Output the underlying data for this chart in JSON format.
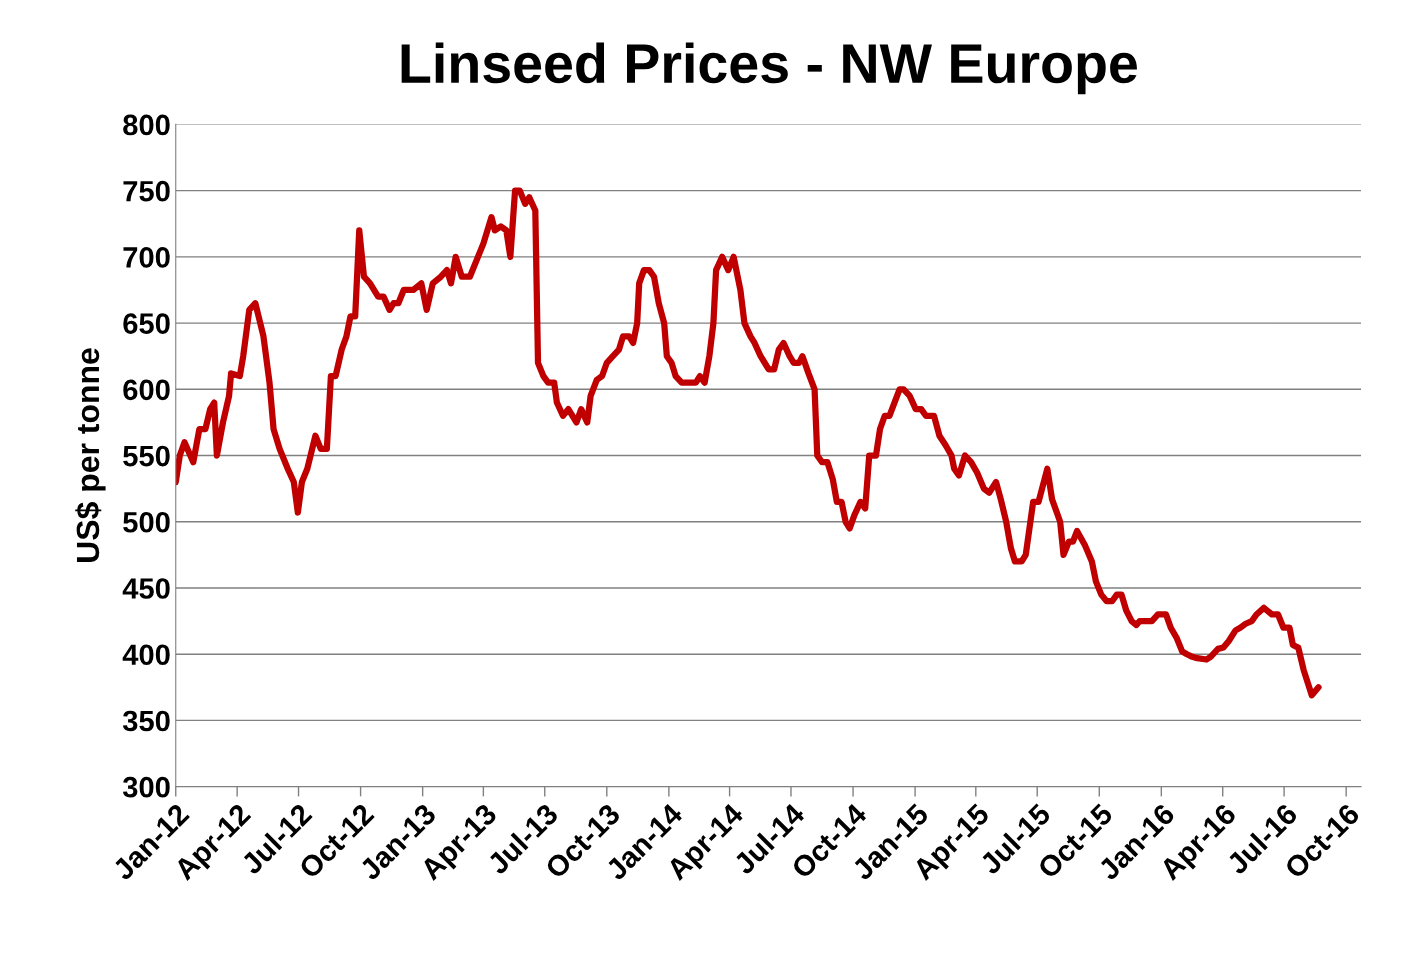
{
  "chart_data": {
    "type": "line",
    "title": "Linseed Prices - NW Europe",
    "ylabel": "US$ per tonne",
    "xlim": [
      "2012-01-01",
      "2016-10-23"
    ],
    "ylim": [
      300,
      800
    ],
    "yticks": [
      300,
      350,
      400,
      450,
      500,
      550,
      600,
      650,
      700,
      750,
      800
    ],
    "xticks": [
      {
        "value": "2012-01-01",
        "label": "Jan-12"
      },
      {
        "value": "2012-04-01",
        "label": "Apr-12"
      },
      {
        "value": "2012-07-01",
        "label": "Jul-12"
      },
      {
        "value": "2012-10-01",
        "label": "Oct-12"
      },
      {
        "value": "2013-01-01",
        "label": "Jan-13"
      },
      {
        "value": "2013-04-01",
        "label": "Apr-13"
      },
      {
        "value": "2013-07-01",
        "label": "Jul-13"
      },
      {
        "value": "2013-10-01",
        "label": "Oct-13"
      },
      {
        "value": "2014-01-01",
        "label": "Jan-14"
      },
      {
        "value": "2014-04-01",
        "label": "Apr-14"
      },
      {
        "value": "2014-07-01",
        "label": "Jul-14"
      },
      {
        "value": "2014-10-01",
        "label": "Oct-14"
      },
      {
        "value": "2015-01-01",
        "label": "Jan-15"
      },
      {
        "value": "2015-04-01",
        "label": "Apr-15"
      },
      {
        "value": "2015-07-01",
        "label": "Jul-15"
      },
      {
        "value": "2015-10-01",
        "label": "Oct-15"
      },
      {
        "value": "2016-01-01",
        "label": "Jan-16"
      },
      {
        "value": "2016-04-01",
        "label": "Apr-16"
      },
      {
        "value": "2016-07-01",
        "label": "Jul-16"
      },
      {
        "value": "2016-10-01",
        "label": "Oct-16"
      }
    ],
    "grid": "y",
    "marker": "none",
    "line_style": "solid",
    "x": [
      "2012-01-01",
      "2012-01-07",
      "2012-01-14",
      "2012-01-27",
      "2012-02-05",
      "2012-02-14",
      "2012-02-21",
      "2012-02-27",
      "2012-03-02",
      "2012-03-11",
      "2012-03-20",
      "2012-03-23",
      "2012-04-05",
      "2012-04-10",
      "2012-04-19",
      "2012-04-28",
      "2012-05-10",
      "2012-05-19",
      "2012-05-25",
      "2012-06-03",
      "2012-06-15",
      "2012-06-24",
      "2012-06-30",
      "2012-07-06",
      "2012-07-14",
      "2012-07-26",
      "2012-08-03",
      "2012-08-12",
      "2012-08-18",
      "2012-08-25",
      "2012-09-03",
      "2012-09-10",
      "2012-09-16",
      "2012-09-23",
      "2012-09-29",
      "2012-10-06",
      "2012-10-15",
      "2012-10-27",
      "2012-11-04",
      "2012-11-13",
      "2012-11-19",
      "2012-11-26",
      "2012-12-04",
      "2012-12-18",
      "2012-12-30",
      "2013-01-07",
      "2013-01-16",
      "2013-01-28",
      "2013-02-06",
      "2013-02-12",
      "2013-02-19",
      "2013-02-28",
      "2013-03-12",
      "2013-03-24",
      "2013-04-01",
      "2013-04-13",
      "2013-04-18",
      "2013-04-27",
      "2013-05-05",
      "2013-05-11",
      "2013-05-18",
      "2013-05-25",
      "2013-06-02",
      "2013-06-08",
      "2013-06-17",
      "2013-06-21",
      "2013-06-29",
      "2013-07-06",
      "2013-07-15",
      "2013-07-19",
      "2013-07-28",
      "2013-08-05",
      "2013-08-17",
      "2013-08-24",
      "2013-09-02",
      "2013-09-07",
      "2013-09-16",
      "2013-09-24",
      "2013-10-01",
      "2013-10-10",
      "2013-10-19",
      "2013-10-25",
      "2013-11-03",
      "2013-11-09",
      "2013-11-15",
      "2013-11-18",
      "2013-11-25",
      "2013-12-03",
      "2013-12-10",
      "2013-12-17",
      "2013-12-25",
      "2013-12-29",
      "2014-01-05",
      "2014-01-11",
      "2014-01-20",
      "2014-02-10",
      "2014-02-16",
      "2014-02-23",
      "2014-03-02",
      "2014-03-08",
      "2014-03-12",
      "2014-03-21",
      "2014-03-30",
      "2014-04-07",
      "2014-04-17",
      "2014-04-23",
      "2014-05-02",
      "2014-05-08",
      "2014-05-17",
      "2014-05-29",
      "2014-06-06",
      "2014-06-13",
      "2014-06-20",
      "2014-06-29",
      "2014-07-05",
      "2014-07-13",
      "2014-07-18",
      "2014-07-27",
      "2014-08-05",
      "2014-08-09",
      "2014-08-16",
      "2014-08-24",
      "2014-09-01",
      "2014-09-07",
      "2014-09-14",
      "2014-09-20",
      "2014-09-26",
      "2014-10-03",
      "2014-10-12",
      "2014-10-19",
      "2014-10-25",
      "2014-11-04",
      "2014-11-10",
      "2014-11-17",
      "2014-11-24",
      "2014-12-03",
      "2014-12-09",
      "2014-12-15",
      "2014-12-24",
      "2015-01-02",
      "2015-01-10",
      "2015-01-17",
      "2015-01-29",
      "2015-02-06",
      "2015-02-15",
      "2015-02-24",
      "2015-02-28",
      "2015-03-07",
      "2015-03-16",
      "2015-03-25",
      "2015-04-03",
      "2015-04-13",
      "2015-04-21",
      "2015-05-01",
      "2015-05-08",
      "2015-05-16",
      "2015-05-23",
      "2015-05-29",
      "2015-06-08",
      "2015-06-14",
      "2015-06-25",
      "2015-07-03",
      "2015-07-16",
      "2015-07-23",
      "2015-08-04",
      "2015-08-09",
      "2015-08-17",
      "2015-08-23",
      "2015-08-29",
      "2015-09-10",
      "2015-09-20",
      "2015-09-26",
      "2015-10-04",
      "2015-10-12",
      "2015-10-20",
      "2015-10-27",
      "2015-11-03",
      "2015-11-10",
      "2015-11-18",
      "2015-11-25",
      "2015-11-30",
      "2015-12-18",
      "2015-12-27",
      "2016-01-08",
      "2016-01-15",
      "2016-01-24",
      "2016-02-01",
      "2016-02-08",
      "2016-02-16",
      "2016-02-23",
      "2016-03-08",
      "2016-03-14",
      "2016-03-25",
      "2016-04-02",
      "2016-04-10",
      "2016-04-20",
      "2016-04-27",
      "2016-05-05",
      "2016-05-14",
      "2016-05-21",
      "2016-06-01",
      "2016-06-13",
      "2016-06-22",
      "2016-06-30",
      "2016-07-09",
      "2016-07-14",
      "2016-07-22",
      "2016-07-30",
      "2016-08-11",
      "2016-08-21"
    ],
    "series": [
      {
        "color": "#c00000",
        "values": [
          530,
          550,
          560,
          545,
          570,
          570,
          585,
          590,
          550,
          575,
          595,
          612,
          610,
          625,
          660,
          665,
          640,
          605,
          570,
          555,
          540,
          530,
          507,
          530,
          540,
          565,
          555,
          555,
          610,
          610,
          630,
          640,
          655,
          655,
          720,
          685,
          680,
          670,
          670,
          660,
          665,
          665,
          675,
          675,
          680,
          660,
          680,
          685,
          690,
          680,
          700,
          685,
          685,
          700,
          710,
          730,
          720,
          723,
          720,
          700,
          750,
          750,
          740,
          745,
          735,
          620,
          610,
          605,
          605,
          590,
          580,
          585,
          575,
          585,
          575,
          595,
          607,
          610,
          620,
          625,
          630,
          640,
          640,
          635,
          650,
          680,
          690,
          690,
          685,
          665,
          650,
          625,
          620,
          610,
          605,
          605,
          610,
          605,
          625,
          650,
          690,
          700,
          690,
          700,
          675,
          650,
          640,
          635,
          625,
          615,
          615,
          630,
          635,
          625,
          620,
          620,
          625,
          612,
          600,
          550,
          545,
          545,
          532,
          515,
          515,
          500,
          495,
          505,
          515,
          510,
          550,
          550,
          570,
          580,
          580,
          592,
          600,
          600,
          595,
          585,
          585,
          580,
          580,
          565,
          558,
          550,
          540,
          535,
          550,
          545,
          537,
          525,
          522,
          530,
          517,
          500,
          480,
          470,
          470,
          475,
          515,
          515,
          540,
          517,
          500,
          475,
          485,
          485,
          493,
          482,
          470,
          455,
          445,
          440,
          440,
          445,
          445,
          433,
          425,
          422,
          425,
          425,
          430,
          430,
          420,
          412,
          402,
          400,
          398,
          397,
          396,
          398,
          404,
          405,
          410,
          418,
          420,
          423,
          425,
          430,
          435,
          430,
          430,
          420,
          420,
          407,
          405,
          388,
          369,
          375
        ]
      }
    ]
  }
}
